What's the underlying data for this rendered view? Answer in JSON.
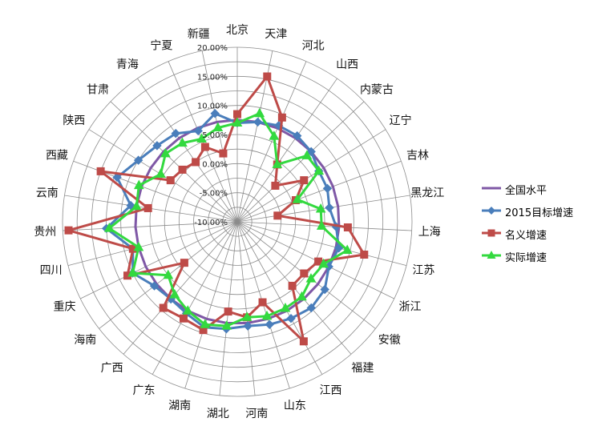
{
  "chart_data": {
    "type": "radar",
    "categories": [
      "北京",
      "天津",
      "河北",
      "山西",
      "内蒙古",
      "辽宁",
      "吉林",
      "黑龙江",
      "上海",
      "江苏",
      "浙江",
      "安徽",
      "福建",
      "江西",
      "山东",
      "河南",
      "湖北",
      "湖南",
      "广东",
      "广西",
      "海南",
      "重庆",
      "四川",
      "贵州",
      "云南",
      "西藏",
      "陕西",
      "甘肃",
      "青海",
      "宁夏",
      "新疆"
    ],
    "radial_ticks": [
      "20.00%",
      "15.00%",
      "10.00%",
      "5.00%",
      "0.00%",
      "-5.00%",
      "-10.00%"
    ],
    "rlim": [
      -10,
      20
    ],
    "grid": true,
    "legend_position": "right",
    "series": [
      {
        "name": "全国水平",
        "color": "#7F58A6",
        "marker": "none",
        "values": [
          7.5,
          7.5,
          7.5,
          7.5,
          7.5,
          7.5,
          7.5,
          7.5,
          7.5,
          7.5,
          7.5,
          7.5,
          7.5,
          7.5,
          7.5,
          7.5,
          7.5,
          7.5,
          7.5,
          7.5,
          7.5,
          7.5,
          7.5,
          7.5,
          7.5,
          7.5,
          7.5,
          7.5,
          7.5,
          7.5,
          7.5
        ]
      },
      {
        "name": "2015目标增速",
        "color": "#4A7EBB",
        "marker": "diamond",
        "values": [
          7,
          7.5,
          8,
          8,
          7.5,
          6.5,
          6.5,
          6,
          7,
          8,
          7.5,
          9,
          9.5,
          9,
          8.5,
          8,
          8.5,
          9,
          8,
          7.5,
          8,
          10,
          8.5,
          12.5,
          8.5,
          12,
          10,
          9,
          8.5,
          7,
          9
        ]
      },
      {
        "name": "名义增速",
        "color": "#BE4B48",
        "marker": "square",
        "values": [
          8.5,
          15.5,
          9.5,
          2,
          -1,
          3.5,
          0.7,
          -3,
          9,
          12.5,
          5.5,
          4.5,
          4.5,
          13.5,
          4.5,
          6.5,
          5.5,
          9.5,
          9,
          9.5,
          1.5,
          11,
          8.5,
          19,
          5.5,
          15,
          3.5,
          3,
          2.5,
          4,
          2
        ]
      },
      {
        "name": "实际增速",
        "color": "#33D93F",
        "marker": "triangle",
        "values": [
          7,
          9,
          6,
          2,
          6.5,
          6.5,
          1,
          4.5,
          4.5,
          9.5,
          6.5,
          6,
          7,
          7,
          7,
          6.5,
          8,
          8.5,
          7.5,
          6.5,
          5,
          10,
          7.5,
          12,
          7.5,
          8,
          5.5,
          7,
          6.5,
          5.5,
          6.5
        ]
      }
    ]
  }
}
